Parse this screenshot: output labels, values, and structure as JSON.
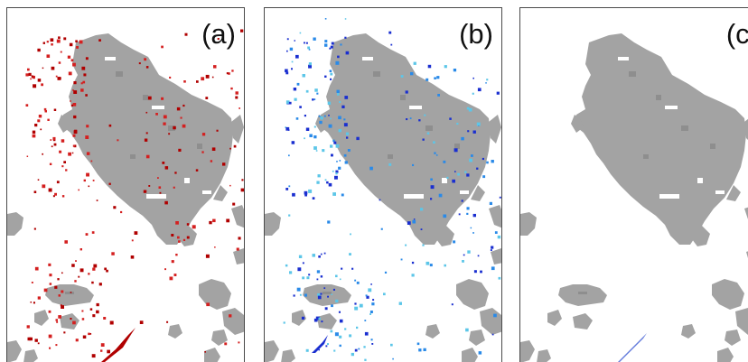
{
  "panels": [
    {
      "id": "a",
      "label": "(a)",
      "marker_kind": "red detection dots",
      "marker_colors": [
        "#d42020",
        "#b00000"
      ]
    },
    {
      "id": "b",
      "label": "(b)",
      "marker_kind": "blue/cyan detection dots",
      "marker_colors": [
        "#1a2fd0",
        "#2a8ae8",
        "#5cc6e8"
      ]
    },
    {
      "id": "c",
      "label": "(c)",
      "marker_kind": "faint blue streak",
      "marker_colors": [
        "#3050d0"
      ]
    }
  ],
  "colors": {
    "cloud_fill": "#a3a3a3",
    "cloud_shade": "#8e8e8e",
    "cloud_hole": "#ffffff",
    "frame": "#4a4a4a",
    "background": "#ffffff"
  }
}
